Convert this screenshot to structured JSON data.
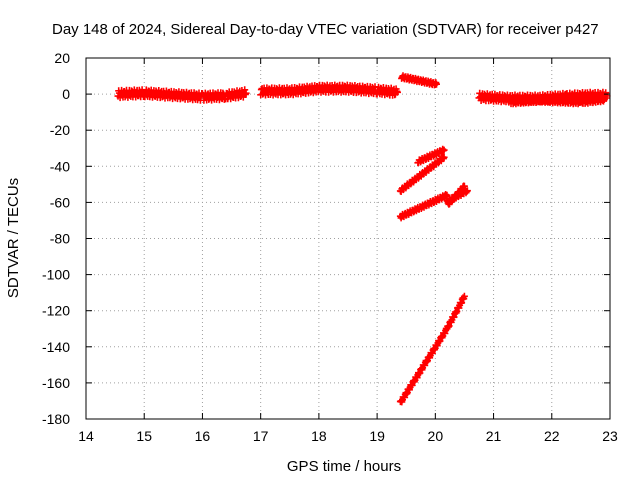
{
  "chart_data": {
    "type": "scatter",
    "title": "Day 148 of 2024, Sidereal Day-to-day VTEC variation (SDTVAR) for receiver p427",
    "xlabel": "GPS time / hours",
    "ylabel": "SDTVAR / TECUs",
    "xlim": [
      14,
      23
    ],
    "ylim": [
      -180,
      20
    ],
    "xticks": [
      14,
      15,
      16,
      17,
      18,
      19,
      20,
      21,
      22,
      23
    ],
    "yticks": [
      20,
      0,
      -20,
      -40,
      -60,
      -80,
      -100,
      -120,
      -140,
      -160,
      -180
    ],
    "grid": true,
    "series_color": "#ff0000",
    "marker": "plus",
    "segments": [
      {
        "x": [
          14.55,
          15.0,
          15.5,
          16.0,
          16.4,
          16.75
        ],
        "y": [
          0,
          0.5,
          -0.5,
          -1.5,
          -1.0,
          0.5
        ],
        "spread": 2
      },
      {
        "x": [
          17.0,
          17.5,
          18.0,
          18.5,
          19.0,
          19.35
        ],
        "y": [
          1.5,
          1.5,
          3.0,
          3.0,
          2.0,
          1.0
        ],
        "spread": 2
      },
      {
        "x": [
          19.42,
          20.02
        ],
        "y": [
          9.5,
          5.5
        ],
        "spread": 0.8
      },
      {
        "x": [
          19.7,
          20.15
        ],
        "y": [
          -37.5,
          -31.0
        ],
        "spread": 0.8
      },
      {
        "x": [
          19.4,
          20.15
        ],
        "y": [
          -53.5,
          -35.0
        ],
        "spread": 0.8
      },
      {
        "x": [
          19.4,
          20.2
        ],
        "y": [
          -68.0,
          -56.0
        ],
        "spread": 0.8
      },
      {
        "x": [
          20.22,
          20.5
        ],
        "y": [
          -61.0,
          -51.0
        ],
        "spread": 0.8
      },
      {
        "x": [
          20.2,
          20.55
        ],
        "y": [
          -59.5,
          -53.5
        ],
        "spread": 0.8
      },
      {
        "x": [
          19.4,
          20.2
        ],
        "y": [
          -171.0,
          -130.0
        ],
        "spread": 0.8
      },
      {
        "x": [
          20.2,
          20.5
        ],
        "y": [
          -130.0,
          -112.0
        ],
        "spread": 0.8
      },
      {
        "x": [
          20.75,
          21.25,
          21.75,
          22.25,
          22.6,
          22.95
        ],
        "y": [
          -1.5,
          -2.5,
          -2.5,
          -1.5,
          -1.0,
          -1.0
        ],
        "spread": 2
      },
      {
        "x": [
          21.3,
          21.8,
          22.5,
          22.9
        ],
        "y": [
          -4.5,
          -3.5,
          -4.5,
          -3.0
        ],
        "spread": 1
      }
    ]
  }
}
